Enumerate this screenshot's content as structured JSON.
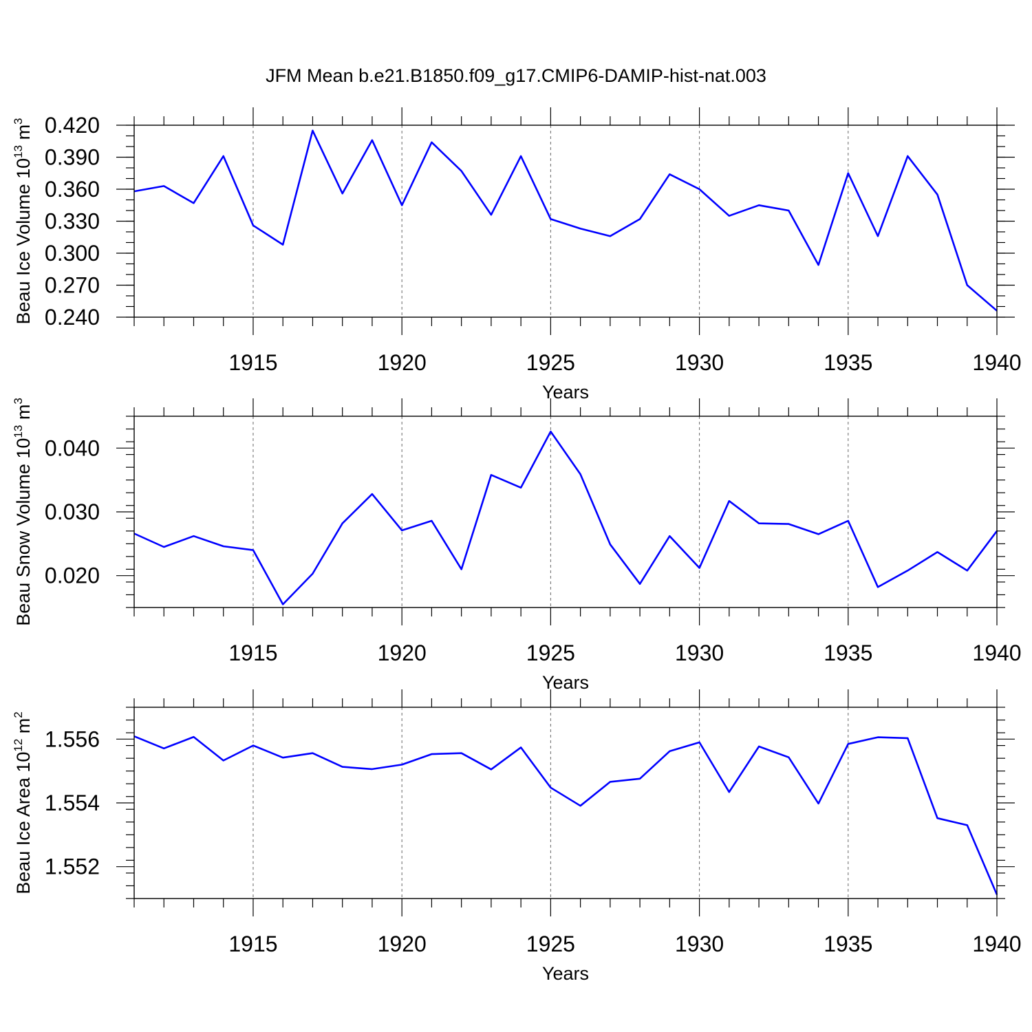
{
  "chart_data": {
    "type": "line",
    "title": "JFM Mean b.e21.B1850.f09_g17.CMIP6-DAMIP-hist-nat.003",
    "line_color": "#0000ff",
    "panels": [
      {
        "id": "ice-volume",
        "ylabel_main": "Beau Ice Volume 10",
        "ylabel_exp": "13",
        "ylabel_unit": "m",
        "ylabel_unit_exp": "3",
        "xlabel": "Years",
        "xlim": [
          1911,
          1940
        ],
        "ylim": [
          0.24,
          0.42
        ],
        "y_major_ticks": [
          0.24,
          0.27,
          0.3,
          0.33,
          0.36,
          0.39,
          0.42
        ],
        "y_tick_labels": [
          "0.240",
          "0.270",
          "0.300",
          "0.330",
          "0.360",
          "0.390",
          "0.420"
        ],
        "y_minor_step": 0.01,
        "x_major_ticks": [
          1915,
          1920,
          1925,
          1930,
          1935,
          1940
        ],
        "x_tick_labels": [
          "1915",
          "1920",
          "1925",
          "1930",
          "1935",
          "1940"
        ],
        "grid": "dashed vertical at major x ticks",
        "series": [
          {
            "name": "Beau Ice Volume",
            "x": [
              1911,
              1912,
              1913,
              1914,
              1915,
              1916,
              1917,
              1918,
              1919,
              1920,
              1921,
              1922,
              1923,
              1924,
              1925,
              1926,
              1927,
              1928,
              1929,
              1930,
              1931,
              1932,
              1933,
              1934,
              1935,
              1936,
              1937,
              1938,
              1939,
              1940
            ],
            "y": [
              0.358,
              0.363,
              0.347,
              0.391,
              0.326,
              0.308,
              0.415,
              0.356,
              0.406,
              0.345,
              0.404,
              0.377,
              0.336,
              0.391,
              0.332,
              0.323,
              0.316,
              0.332,
              0.374,
              0.36,
              0.335,
              0.345,
              0.34,
              0.289,
              0.375,
              0.316,
              0.391,
              0.355,
              0.27,
              0.246
            ]
          }
        ]
      },
      {
        "id": "snow-volume",
        "ylabel_main": "Beau Snow Volume 10",
        "ylabel_exp": "13",
        "ylabel_unit": "m",
        "ylabel_unit_exp": "3",
        "xlabel": "Years",
        "xlim": [
          1911,
          1940
        ],
        "ylim": [
          0.015,
          0.045
        ],
        "y_major_ticks": [
          0.02,
          0.03,
          0.04
        ],
        "y_tick_labels": [
          "0.020",
          "0.030",
          "0.040"
        ],
        "y_minor_step": 0.002,
        "x_major_ticks": [
          1915,
          1920,
          1925,
          1930,
          1935,
          1940
        ],
        "x_tick_labels": [
          "1915",
          "1920",
          "1925",
          "1930",
          "1935",
          "1940"
        ],
        "grid": "dashed vertical at major x ticks",
        "series": [
          {
            "name": "Beau Snow Volume",
            "x": [
              1911,
              1912,
              1913,
              1914,
              1915,
              1916,
              1917,
              1918,
              1919,
              1920,
              1921,
              1922,
              1923,
              1924,
              1925,
              1926,
              1927,
              1928,
              1929,
              1930,
              1931,
              1932,
              1933,
              1934,
              1935,
              1936,
              1937,
              1938,
              1939,
              1940
            ],
            "y": [
              0.0266,
              0.0245,
              0.0262,
              0.0246,
              0.024,
              0.0155,
              0.0203,
              0.0282,
              0.0328,
              0.0271,
              0.0286,
              0.021,
              0.0358,
              0.0338,
              0.0426,
              0.0359,
              0.0249,
              0.0187,
              0.0262,
              0.0212,
              0.0317,
              0.0282,
              0.0281,
              0.0265,
              0.0286,
              0.0182,
              0.0208,
              0.0237,
              0.0208,
              0.027
            ]
          }
        ]
      },
      {
        "id": "ice-area",
        "ylabel_main": "Beau Ice Area 10",
        "ylabel_exp": "12",
        "ylabel_unit": "m",
        "ylabel_unit_exp": "2",
        "xlabel": "Years",
        "xlim": [
          1911,
          1940
        ],
        "ylim": [
          1.551,
          1.557
        ],
        "y_major_ticks": [
          1.552,
          1.554,
          1.556
        ],
        "y_tick_labels": [
          "1.552",
          "1.554",
          "1.556"
        ],
        "y_minor_step": 0.0004,
        "x_major_ticks": [
          1915,
          1920,
          1925,
          1930,
          1935,
          1940
        ],
        "x_tick_labels": [
          "1915",
          "1920",
          "1925",
          "1930",
          "1935",
          "1940"
        ],
        "grid": "dashed vertical at major x ticks",
        "series": [
          {
            "name": "Beau Ice Area",
            "x": [
              1911,
              1912,
              1913,
              1914,
              1915,
              1916,
              1917,
              1918,
              1919,
              1920,
              1921,
              1922,
              1923,
              1924,
              1925,
              1926,
              1927,
              1928,
              1929,
              1930,
              1931,
              1932,
              1933,
              1934,
              1935,
              1936,
              1937,
              1938,
              1939,
              1940
            ],
            "y": [
              1.55609,
              1.55571,
              1.55607,
              1.55533,
              1.5558,
              1.55542,
              1.55556,
              1.55513,
              1.55506,
              1.5552,
              1.55553,
              1.55556,
              1.55505,
              1.55574,
              1.55448,
              1.55391,
              1.55466,
              1.55476,
              1.55562,
              1.5559,
              1.55434,
              1.55577,
              1.55543,
              1.55398,
              1.55585,
              1.55606,
              1.55603,
              1.55352,
              1.5533,
              1.55112
            ]
          }
        ]
      }
    ]
  }
}
